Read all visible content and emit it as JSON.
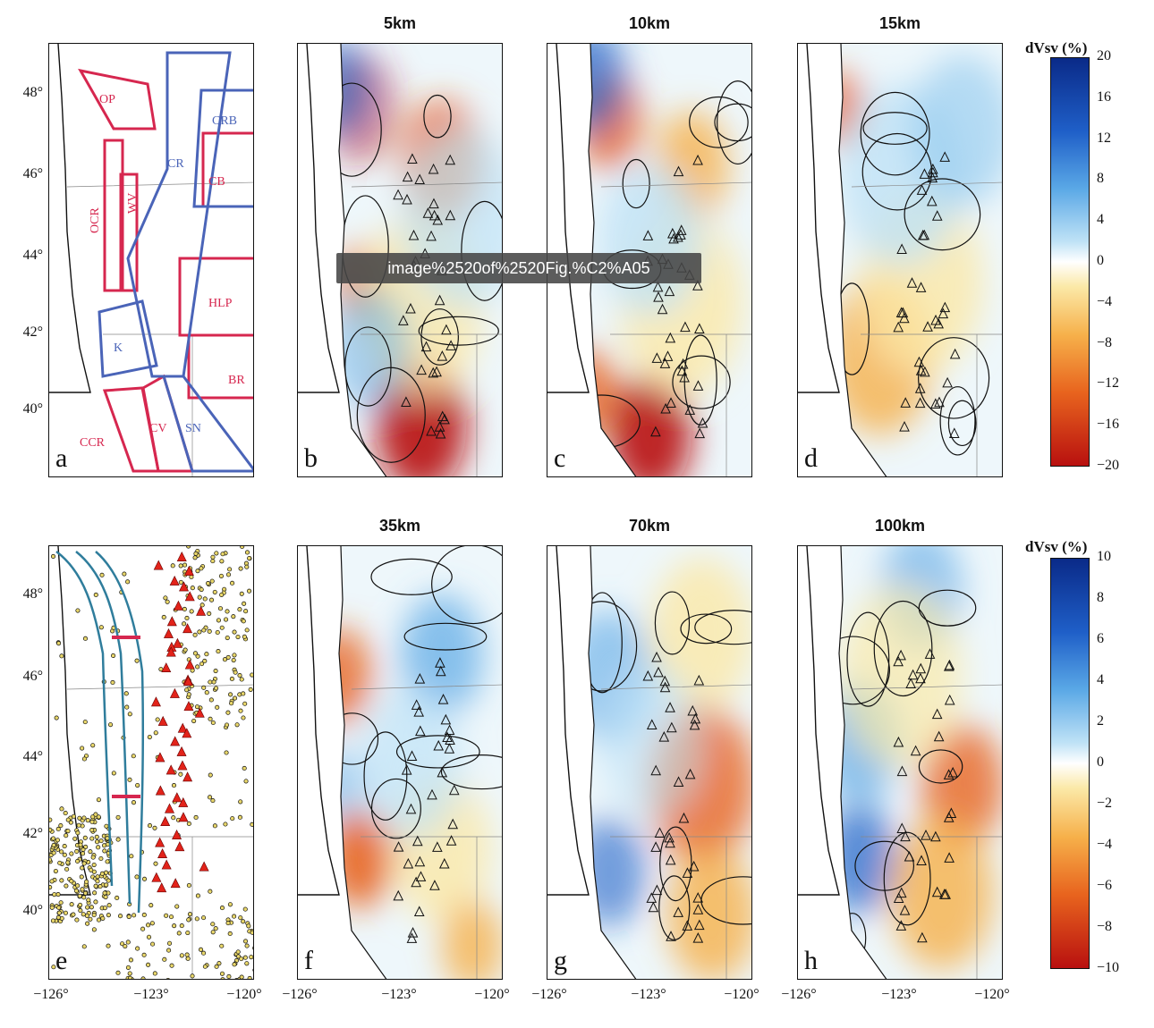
{
  "tooltip": {
    "text": "image%2520of%2520Fig.%C2%A05"
  },
  "panels": [
    {
      "letter": "a",
      "title": "",
      "kind": "regions"
    },
    {
      "letter": "b",
      "title": "5km",
      "kind": "tomo",
      "variant": 1
    },
    {
      "letter": "c",
      "title": "10km",
      "kind": "tomo",
      "variant": 2
    },
    {
      "letter": "d",
      "title": "15km",
      "kind": "tomo",
      "variant": 3
    },
    {
      "letter": "e",
      "title": "",
      "kind": "seismicity"
    },
    {
      "letter": "f",
      "title": "35km",
      "kind": "tomo",
      "variant": 4
    },
    {
      "letter": "g",
      "title": "70km",
      "kind": "tomo",
      "variant": 5
    },
    {
      "letter": "h",
      "title": "100km",
      "kind": "tomo",
      "variant": 6
    }
  ],
  "region_labels_red": [
    "OP",
    "OCR",
    "WV",
    "CB",
    "HLP",
    "BR",
    "CV",
    "CCR"
  ],
  "region_labels_blue": [
    "CRB",
    "CR",
    "K",
    "SN"
  ],
  "latitude_labels": [
    "48°",
    "46°",
    "44°",
    "42°",
    "40°"
  ],
  "longitude_labels": [
    "−126°",
    "−123°",
    "−120°"
  ],
  "colorbar_top": {
    "title": "dVsv (%)",
    "ticks": [
      "20",
      "16",
      "12",
      "8",
      "4",
      "0",
      "−4",
      "−8",
      "−12",
      "−16",
      "−20"
    ]
  },
  "colorbar_bottom": {
    "title": "dVsv (%)",
    "ticks": [
      "10",
      "8",
      "6",
      "4",
      "2",
      "0",
      "−2",
      "−4",
      "−6",
      "−8",
      "−10"
    ]
  },
  "colors": {
    "regions_red": "#d6274f",
    "regions_blue": "#4a64b8",
    "volcano_red": "#e2231a",
    "slab_teal": "#2f7d9c",
    "quake_yellow": "#e8d66a"
  }
}
